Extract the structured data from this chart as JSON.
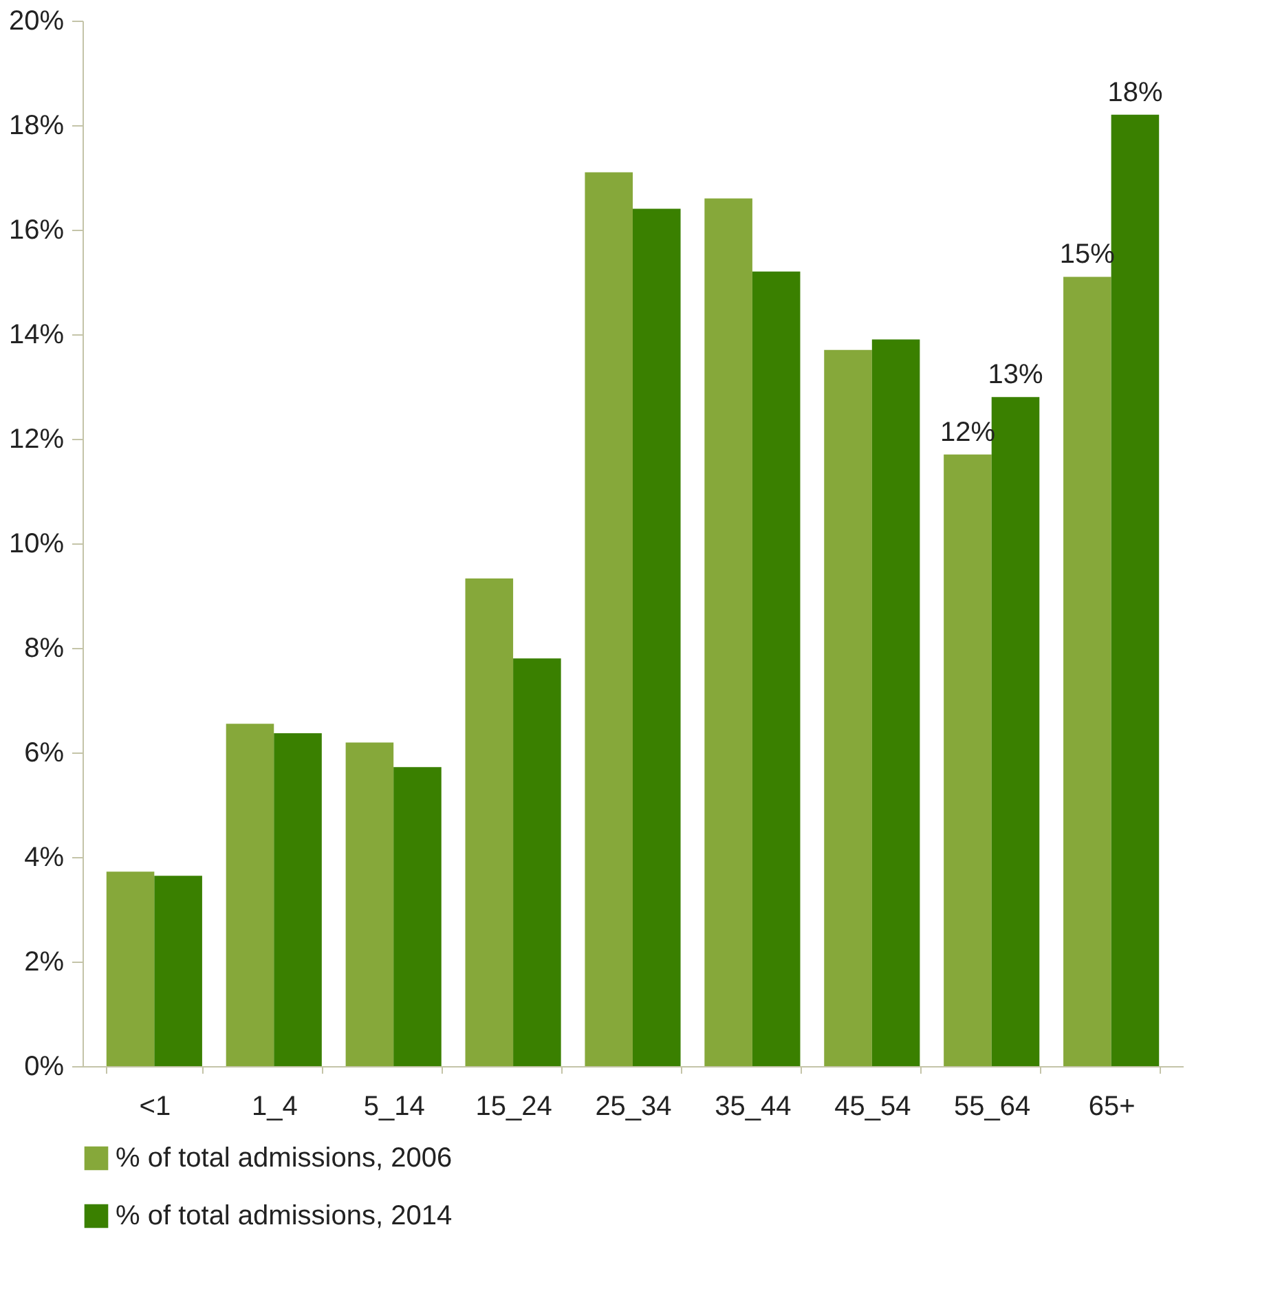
{
  "chart_data": {
    "type": "bar",
    "categories": [
      "<1",
      "1_4",
      "5_14",
      "15_24",
      "25_34",
      "35_44",
      "45_54",
      "55_64",
      "65+"
    ],
    "series": [
      {
        "name": "% of total admissions, 2006",
        "color": "#86a83a",
        "values": [
          3.72,
          6.55,
          6.19,
          9.33,
          17.1,
          16.6,
          13.7,
          11.7,
          15.1
        ],
        "value_labels": [
          null,
          null,
          null,
          null,
          null,
          null,
          null,
          "12%",
          "15%"
        ]
      },
      {
        "name": "% of total admissions, 2014",
        "color": "#3a8000",
        "values": [
          3.64,
          6.37,
          5.72,
          7.8,
          16.4,
          15.2,
          13.9,
          12.8,
          18.2
        ],
        "value_labels": [
          null,
          null,
          null,
          null,
          null,
          null,
          null,
          "13%",
          "18%"
        ]
      }
    ],
    "ylim": [
      0,
      20
    ],
    "yticks": [
      {
        "value": 0,
        "label": "0%"
      },
      {
        "value": 2,
        "label": "2%"
      },
      {
        "value": 4,
        "label": "4%"
      },
      {
        "value": 6,
        "label": "6%"
      },
      {
        "value": 8,
        "label": "8%"
      },
      {
        "value": 10,
        "label": "10%"
      },
      {
        "value": 12,
        "label": "12%"
      },
      {
        "value": 14,
        "label": "14%"
      },
      {
        "value": 16,
        "label": "16%"
      },
      {
        "value": 18,
        "label": "18%"
      },
      {
        "value": 20,
        "label": "20%"
      }
    ],
    "grid": false,
    "legend": "bottom"
  }
}
